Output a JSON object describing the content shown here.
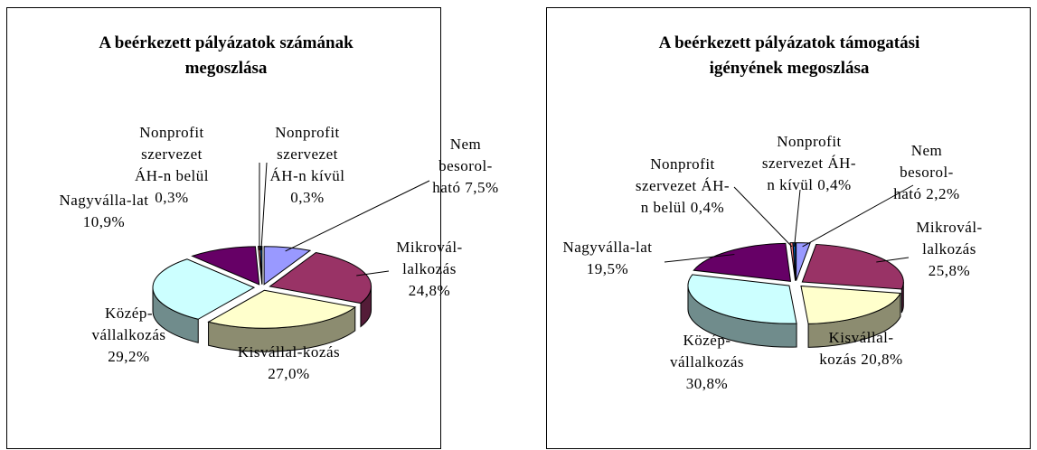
{
  "chart_data": [
    {
      "type": "pie",
      "title": "A beérkezett pályázatok számának megoszlása",
      "categories": [
        "Nem besorol-ható",
        "Mikrovál-lalkozás",
        "Kisvállal-kozás",
        "Közép-vállalkozás",
        "Nagyvállа-lat",
        "Nonprofit szervezet ÁH-n belül",
        "Nonprofit szervezet ÁH-n kívül"
      ],
      "values": [
        7.5,
        24.8,
        27.0,
        29.2,
        10.9,
        0.3,
        0.3
      ],
      "value_labels": [
        "7,5%",
        "24,8%",
        "27,0%",
        "29,2%",
        "10,9%",
        "0,3%",
        "0,3%"
      ],
      "colors": [
        "#9999ff",
        "#993366",
        "#ffffcc",
        "#ccffff",
        "#660066",
        "#ff8080",
        "#0066cc"
      ]
    },
    {
      "type": "pie",
      "title": "A beérkezett pályázatok támogatási igényének megoszlása",
      "categories": [
        "Nem besorol-ható",
        "Mikrovál-lalkozás",
        "Kisvállal-kozás",
        "Közép-vállalkozás",
        "Nagyvállа-lat",
        "Nonprofit szervezet ÁH-n belül",
        "Nonprofit szervezet ÁH-n kívül"
      ],
      "values": [
        2.2,
        25.8,
        20.8,
        30.8,
        19.5,
        0.4,
        0.4
      ],
      "value_labels": [
        "2,2%",
        "25,8%",
        "20,8%",
        "30,8%",
        "19,5%",
        "0,4%",
        "0,4%"
      ],
      "colors": [
        "#9999ff",
        "#993366",
        "#ffffcc",
        "#ccffff",
        "#660066",
        "#ff8080",
        "#0066cc"
      ]
    }
  ]
}
